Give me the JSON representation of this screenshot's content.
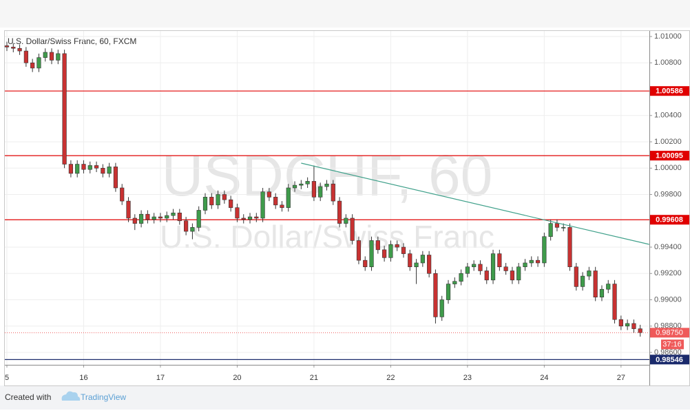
{
  "chart_data": {
    "type": "candlestick",
    "title": "U.S. Dollar/Swiss Franc, 60, FXCM",
    "watermark": {
      "symbol": "USDCHF, 60",
      "description": "U.S. Dollar/Swiss Franc"
    },
    "categories": [
      "5",
      null,
      null,
      null,
      null,
      null,
      null,
      null,
      null,
      null,
      null,
      null,
      "16",
      null,
      null,
      null,
      null,
      null,
      null,
      null,
      null,
      null,
      null,
      null,
      "17",
      null,
      null,
      null,
      null,
      null,
      null,
      null,
      null,
      null,
      null,
      null,
      "20",
      null,
      null,
      null,
      null,
      null,
      null,
      null,
      null,
      null,
      null,
      null,
      "21",
      null,
      null,
      null,
      null,
      null,
      null,
      null,
      null,
      null,
      null,
      null,
      "22",
      null,
      null,
      null,
      null,
      null,
      null,
      null,
      null,
      null,
      null,
      null,
      "23",
      null,
      null,
      null,
      null,
      null,
      null,
      null,
      null,
      null,
      null,
      null,
      "24",
      null,
      null,
      null,
      null,
      null,
      null,
      null,
      null,
      null,
      null,
      null,
      "27",
      null,
      null,
      null
    ],
    "open": [
      1.0093,
      1.0092,
      1.0091,
      1.0089,
      1.008,
      1.0076,
      1.0084,
      1.0088,
      1.0082,
      1.0087,
      1.0003,
      0.9996,
      1.0003,
      0.9999,
      1.0002,
      1.0,
      0.9996,
      1.0001,
      0.9985,
      0.9975,
      0.9962,
      0.9958,
      0.9965,
      0.9961,
      0.9963,
      0.9962,
      0.9964,
      0.9966,
      0.996,
      0.9952,
      0.9955,
      0.9968,
      0.9978,
      0.9972,
      0.998,
      0.9976,
      0.997,
      0.9962,
      0.9961,
      0.9963,
      0.9962,
      0.9982,
      0.9978,
      0.9972,
      0.997,
      0.9985,
      0.9987,
      0.9988,
      0.999,
      0.9978,
      0.9986,
      0.9988,
      0.9975,
      0.9958,
      0.9962,
      0.9945,
      0.993,
      0.9925,
      0.9945,
      0.9938,
      0.9932,
      0.9942,
      0.994,
      0.9935,
      0.9925,
      0.9928,
      0.9934,
      0.992,
      0.9887,
      0.99,
      0.9912,
      0.9914,
      0.992,
      0.9925,
      0.9927,
      0.9922,
      0.9915,
      0.9935,
      0.9925,
      0.9922,
      0.9915,
      0.9925,
      0.9928,
      0.993,
      0.9928,
      0.9948,
      0.9958,
      0.9955,
      0.9955,
      0.9925,
      0.991,
      0.9918,
      0.9922,
      0.9902,
      0.9908,
      0.9912,
      0.9885,
      0.988,
      0.9882,
      0.9878
    ],
    "high": [
      1.0096,
      1.0095,
      1.0094,
      1.0092,
      1.0083,
      1.0087,
      1.0091,
      1.0091,
      1.009,
      1.009,
      1.0006,
      1.0006,
      1.0006,
      1.0005,
      1.0005,
      1.0003,
      1.0004,
      1.0004,
      0.9988,
      0.9978,
      0.9965,
      0.9968,
      0.9968,
      0.9966,
      0.9966,
      0.9967,
      0.9969,
      0.9969,
      0.9963,
      0.9958,
      0.9971,
      0.9981,
      0.9981,
      0.9983,
      0.9983,
      0.9979,
      0.9973,
      0.9965,
      0.9966,
      0.9966,
      0.9985,
      0.9985,
      0.9981,
      0.9975,
      0.9988,
      0.999,
      0.9991,
      0.9993,
      1.0002,
      0.9989,
      0.9991,
      0.9991,
      0.9978,
      0.9965,
      0.9965,
      0.9948,
      0.9933,
      0.9948,
      0.9948,
      0.9941,
      0.9945,
      0.9945,
      0.9943,
      0.9938,
      0.9931,
      0.9937,
      0.9937,
      0.9923,
      0.9903,
      0.9915,
      0.9917,
      0.9923,
      0.9928,
      0.993,
      0.993,
      0.9925,
      0.9938,
      0.9938,
      0.9928,
      0.9925,
      0.9928,
      0.9931,
      0.9933,
      0.9933,
      0.9951,
      0.9961,
      0.9961,
      0.9958,
      0.9958,
      0.9928,
      0.9921,
      0.9925,
      0.9925,
      0.9911,
      0.9915,
      0.9915,
      0.9888,
      0.9885,
      0.9885,
      0.9881
    ],
    "low": [
      1.0089,
      1.0088,
      1.0086,
      1.0077,
      1.0073,
      1.0073,
      1.0081,
      1.0079,
      1.0079,
      1.0,
      0.9993,
      0.9993,
      0.9996,
      0.9996,
      0.9997,
      0.9993,
      0.9993,
      0.9982,
      0.9972,
      0.9959,
      0.9953,
      0.9955,
      0.9958,
      0.9958,
      0.9959,
      0.9959,
      0.9961,
      0.9957,
      0.9949,
      0.9946,
      0.9952,
      0.9965,
      0.9969,
      0.9969,
      0.9973,
      0.9967,
      0.9959,
      0.9958,
      0.9958,
      0.9959,
      0.9959,
      0.9975,
      0.9969,
      0.9967,
      0.9967,
      0.9982,
      0.9984,
      0.9985,
      0.9975,
      0.9975,
      0.9983,
      0.9972,
      0.9955,
      0.9955,
      0.9942,
      0.9927,
      0.9922,
      0.9922,
      0.9935,
      0.9929,
      0.9929,
      0.9937,
      0.9932,
      0.9922,
      0.9912,
      0.9925,
      0.9917,
      0.9882,
      0.9884,
      0.9897,
      0.9909,
      0.9911,
      0.9917,
      0.9922,
      0.9919,
      0.9912,
      0.9912,
      0.9922,
      0.9919,
      0.9912,
      0.9912,
      0.9922,
      0.9925,
      0.9925,
      0.9925,
      0.9945,
      0.9952,
      0.9952,
      0.9922,
      0.9907,
      0.9907,
      0.9915,
      0.9899,
      0.9899,
      0.9905,
      0.9882,
      0.9877,
      0.9877,
      0.9875,
      0.9872
    ],
    "close": [
      1.0092,
      1.0091,
      1.0089,
      1.008,
      1.0076,
      1.0084,
      1.0088,
      1.0082,
      1.0087,
      1.0003,
      0.9996,
      1.0003,
      0.9999,
      1.0002,
      1.0,
      0.9996,
      1.0001,
      0.9985,
      0.9975,
      0.9962,
      0.9958,
      0.9965,
      0.9961,
      0.9963,
      0.9962,
      0.9964,
      0.9966,
      0.996,
      0.9952,
      0.9955,
      0.9968,
      0.9978,
      0.9972,
      0.998,
      0.9976,
      0.997,
      0.9962,
      0.9961,
      0.9963,
      0.9962,
      0.9982,
      0.9978,
      0.9972,
      0.997,
      0.9985,
      0.9987,
      0.9988,
      0.999,
      0.9978,
      0.9986,
      0.9988,
      0.9975,
      0.9958,
      0.9962,
      0.9945,
      0.993,
      0.9925,
      0.9945,
      0.9938,
      0.9932,
      0.9942,
      0.994,
      0.9935,
      0.9925,
      0.9928,
      0.9934,
      0.992,
      0.9887,
      0.99,
      0.9912,
      0.9914,
      0.992,
      0.9925,
      0.9927,
      0.9922,
      0.9915,
      0.9935,
      0.9925,
      0.9922,
      0.9915,
      0.9925,
      0.9928,
      0.993,
      0.9928,
      0.9948,
      0.9958,
      0.9955,
      0.9955,
      0.9925,
      0.991,
      0.9918,
      0.9922,
      0.9902,
      0.9908,
      0.9912,
      0.9885,
      0.988,
      0.9882,
      0.9878,
      0.9875
    ],
    "up_color": "#3f9b4b",
    "down_color": "#c83232",
    "ylim": [
      0.98506,
      1.01042
    ],
    "yticks": [
      {
        "value": 1.01,
        "label": "1.01000"
      },
      {
        "value": 1.008,
        "label": "1.00800"
      },
      {
        "value": 1.004,
        "label": "1.00400"
      },
      {
        "value": 1.002,
        "label": "1.00200"
      },
      {
        "value": 1.0,
        "label": "1.00000"
      },
      {
        "value": 0.998,
        "label": "0.99800"
      },
      {
        "value": 0.994,
        "label": "0.99400"
      },
      {
        "value": 0.992,
        "label": "0.99200"
      },
      {
        "value": 0.99,
        "label": "0.99000"
      },
      {
        "value": 0.988,
        "label": "0.98800"
      },
      {
        "value": 0.986,
        "label": "0.98600"
      }
    ],
    "grid": true,
    "price_lines": [
      {
        "value": 1.00586,
        "color": "#e00000"
      },
      {
        "value": 1.00095,
        "color": "#e00000"
      },
      {
        "value": 0.99608,
        "color": "#e00000"
      },
      {
        "value": 0.98546,
        "color": "#1a2a6c"
      }
    ],
    "current_price": {
      "value": 0.9875,
      "label": "0.98750",
      "countdown": "37:16",
      "color": "#ef5a5a"
    },
    "trendline": {
      "x": [
        46,
        100.4
      ],
      "values": [
        1.00038,
        0.99421
      ],
      "color": "#3fa08a"
    }
  },
  "footer": {
    "text": "Created with",
    "brand": "TradingView"
  }
}
